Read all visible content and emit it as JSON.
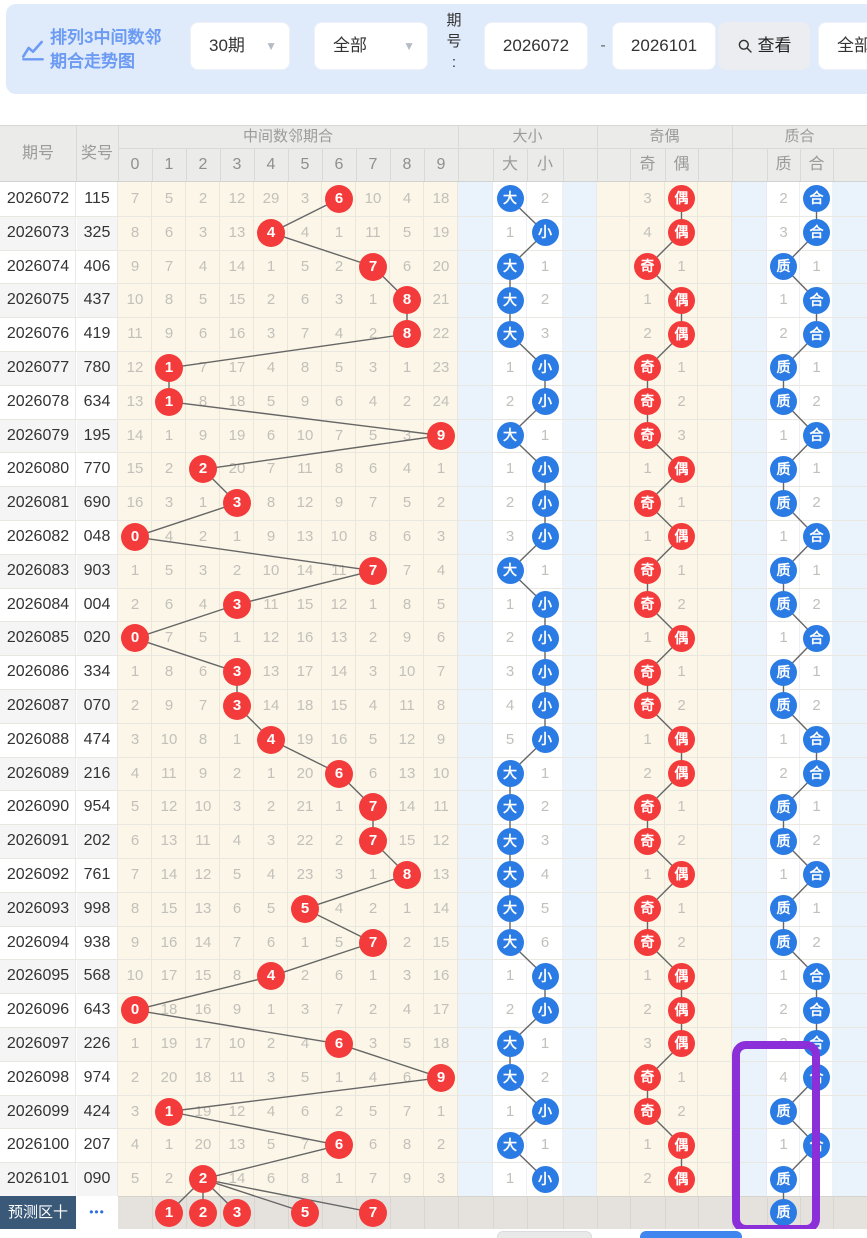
{
  "toolbar": {
    "title_line1": "排列3中间数邻",
    "title_line2": "期合走势图",
    "range_select": "30期",
    "scope_select": "全部",
    "period_label": "期号:",
    "period_from": "2026072",
    "period_dash": "-",
    "period_to": "2026101",
    "search_label": "查看",
    "right_select": "全部"
  },
  "header": {
    "period": "期号",
    "prize": "奖号",
    "group_mid": "中间数邻期合",
    "grid_cols": [
      "0",
      "1",
      "2",
      "3",
      "4",
      "5",
      "6",
      "7",
      "8",
      "9"
    ],
    "group_dx": "大小",
    "da": "大",
    "xiao": "小",
    "group_jo": "奇偶",
    "ji": "奇",
    "ou": "偶",
    "group_zh": "质合",
    "zhi": "质",
    "he": "合"
  },
  "rows": [
    {
      "qh": "2026072",
      "jh": "115",
      "grid": [
        7,
        5,
        2,
        12,
        29,
        3,
        6,
        10,
        4,
        18
      ],
      "hit": 6,
      "dx": [
        "大",
        2
      ],
      "jo": [
        "偶",
        3
      ],
      "zh": [
        "合",
        2
      ]
    },
    {
      "qh": "2026073",
      "jh": "325",
      "grid": [
        8,
        6,
        3,
        13,
        4,
        4,
        1,
        11,
        5,
        19
      ],
      "hit": 4,
      "dx": [
        "小",
        1
      ],
      "jo": [
        "偶",
        4
      ],
      "zh": [
        "合",
        3
      ]
    },
    {
      "qh": "2026074",
      "jh": "406",
      "grid": [
        9,
        7,
        4,
        14,
        1,
        5,
        2,
        7,
        6,
        20
      ],
      "hit": 7,
      "dx": [
        "大",
        1
      ],
      "jo": [
        "奇",
        1
      ],
      "zh": [
        "质",
        1
      ]
    },
    {
      "qh": "2026075",
      "jh": "437",
      "grid": [
        10,
        8,
        5,
        15,
        2,
        6,
        3,
        1,
        8,
        21
      ],
      "hit": 8,
      "dx": [
        "大",
        2
      ],
      "jo": [
        "偶",
        1
      ],
      "zh": [
        "合",
        1
      ]
    },
    {
      "qh": "2026076",
      "jh": "419",
      "grid": [
        11,
        9,
        6,
        16,
        3,
        7,
        4,
        2,
        8,
        22
      ],
      "hit": 8,
      "dx": [
        "大",
        3
      ],
      "jo": [
        "偶",
        2
      ],
      "zh": [
        "合",
        2
      ]
    },
    {
      "qh": "2026077",
      "jh": "780",
      "grid": [
        12,
        1,
        7,
        17,
        4,
        8,
        5,
        3,
        1,
        23
      ],
      "hit": 1,
      "dx": [
        "小",
        1
      ],
      "jo": [
        "奇",
        1
      ],
      "zh": [
        "质",
        1
      ]
    },
    {
      "qh": "2026078",
      "jh": "634",
      "grid": [
        13,
        1,
        8,
        18,
        5,
        9,
        6,
        4,
        2,
        24
      ],
      "hit": 1,
      "dx": [
        "小",
        2
      ],
      "jo": [
        "奇",
        2
      ],
      "zh": [
        "质",
        2
      ]
    },
    {
      "qh": "2026079",
      "jh": "195",
      "grid": [
        14,
        1,
        9,
        19,
        6,
        10,
        7,
        5,
        3,
        9
      ],
      "hit": 9,
      "dx": [
        "大",
        1
      ],
      "jo": [
        "奇",
        3
      ],
      "zh": [
        "合",
        1
      ]
    },
    {
      "qh": "2026080",
      "jh": "770",
      "grid": [
        15,
        2,
        2,
        20,
        7,
        11,
        8,
        6,
        4,
        1
      ],
      "hit": 2,
      "dx": [
        "小",
        1
      ],
      "jo": [
        "偶",
        1
      ],
      "zh": [
        "质",
        1
      ]
    },
    {
      "qh": "2026081",
      "jh": "690",
      "grid": [
        16,
        3,
        1,
        3,
        8,
        12,
        9,
        7,
        5,
        2
      ],
      "hit": 3,
      "dx": [
        "小",
        2
      ],
      "jo": [
        "奇",
        1
      ],
      "zh": [
        "质",
        2
      ]
    },
    {
      "qh": "2026082",
      "jh": "048",
      "grid": [
        0,
        4,
        2,
        1,
        9,
        13,
        10,
        8,
        6,
        3
      ],
      "hit": 0,
      "dx": [
        "小",
        3
      ],
      "jo": [
        "偶",
        1
      ],
      "zh": [
        "合",
        1
      ]
    },
    {
      "qh": "2026083",
      "jh": "903",
      "grid": [
        1,
        5,
        3,
        2,
        10,
        14,
        11,
        7,
        7,
        4
      ],
      "hit": 7,
      "dx": [
        "大",
        1
      ],
      "jo": [
        "奇",
        1
      ],
      "zh": [
        "质",
        1
      ]
    },
    {
      "qh": "2026084",
      "jh": "004",
      "grid": [
        2,
        6,
        4,
        3,
        11,
        15,
        12,
        1,
        8,
        5
      ],
      "hit": 3,
      "dx": [
        "小",
        1
      ],
      "jo": [
        "奇",
        2
      ],
      "zh": [
        "质",
        2
      ]
    },
    {
      "qh": "2026085",
      "jh": "020",
      "grid": [
        0,
        7,
        5,
        1,
        12,
        16,
        13,
        2,
        9,
        6
      ],
      "hit": 0,
      "dx": [
        "小",
        2
      ],
      "jo": [
        "偶",
        1
      ],
      "zh": [
        "合",
        1
      ]
    },
    {
      "qh": "2026086",
      "jh": "334",
      "grid": [
        1,
        8,
        6,
        3,
        13,
        17,
        14,
        3,
        10,
        7
      ],
      "hit": 3,
      "dx": [
        "小",
        3
      ],
      "jo": [
        "奇",
        1
      ],
      "zh": [
        "质",
        1
      ]
    },
    {
      "qh": "2026087",
      "jh": "070",
      "grid": [
        2,
        9,
        7,
        3,
        14,
        18,
        15,
        4,
        11,
        8
      ],
      "hit": 3,
      "dx": [
        "小",
        4
      ],
      "jo": [
        "奇",
        2
      ],
      "zh": [
        "质",
        2
      ]
    },
    {
      "qh": "2026088",
      "jh": "474",
      "grid": [
        3,
        10,
        8,
        1,
        4,
        19,
        16,
        5,
        12,
        9
      ],
      "hit": 4,
      "dx": [
        "小",
        5
      ],
      "jo": [
        "偶",
        1
      ],
      "zh": [
        "合",
        1
      ]
    },
    {
      "qh": "2026089",
      "jh": "216",
      "grid": [
        4,
        11,
        9,
        2,
        1,
        20,
        6,
        6,
        13,
        10
      ],
      "hit": 6,
      "dx": [
        "大",
        1
      ],
      "jo": [
        "偶",
        2
      ],
      "zh": [
        "合",
        2
      ]
    },
    {
      "qh": "2026090",
      "jh": "954",
      "grid": [
        5,
        12,
        10,
        3,
        2,
        21,
        1,
        7,
        14,
        11
      ],
      "hit": 7,
      "dx": [
        "大",
        2
      ],
      "jo": [
        "奇",
        1
      ],
      "zh": [
        "质",
        1
      ]
    },
    {
      "qh": "2026091",
      "jh": "202",
      "grid": [
        6,
        13,
        11,
        4,
        3,
        22,
        2,
        7,
        15,
        12
      ],
      "hit": 7,
      "dx": [
        "大",
        3
      ],
      "jo": [
        "奇",
        2
      ],
      "zh": [
        "质",
        2
      ]
    },
    {
      "qh": "2026092",
      "jh": "761",
      "grid": [
        7,
        14,
        12,
        5,
        4,
        23,
        3,
        1,
        8,
        13
      ],
      "hit": 8,
      "dx": [
        "大",
        4
      ],
      "jo": [
        "偶",
        1
      ],
      "zh": [
        "合",
        1
      ]
    },
    {
      "qh": "2026093",
      "jh": "998",
      "grid": [
        8,
        15,
        13,
        6,
        5,
        5,
        4,
        2,
        1,
        14
      ],
      "hit": 5,
      "dx": [
        "大",
        5
      ],
      "jo": [
        "奇",
        1
      ],
      "zh": [
        "质",
        1
      ]
    },
    {
      "qh": "2026094",
      "jh": "938",
      "grid": [
        9,
        16,
        14,
        7,
        6,
        1,
        5,
        7,
        2,
        15
      ],
      "hit": 7,
      "dx": [
        "大",
        6
      ],
      "jo": [
        "奇",
        2
      ],
      "zh": [
        "质",
        2
      ]
    },
    {
      "qh": "2026095",
      "jh": "568",
      "grid": [
        10,
        17,
        15,
        8,
        4,
        2,
        6,
        1,
        3,
        16
      ],
      "hit": 4,
      "dx": [
        "小",
        1
      ],
      "jo": [
        "偶",
        1
      ],
      "zh": [
        "合",
        1
      ]
    },
    {
      "qh": "2026096",
      "jh": "643",
      "grid": [
        0,
        18,
        16,
        9,
        1,
        3,
        7,
        2,
        4,
        17
      ],
      "hit": 0,
      "dx": [
        "小",
        2
      ],
      "jo": [
        "偶",
        2
      ],
      "zh": [
        "合",
        2
      ]
    },
    {
      "qh": "2026097",
      "jh": "226",
      "grid": [
        1,
        19,
        17,
        10,
        2,
        4,
        6,
        3,
        5,
        18
      ],
      "hit": 6,
      "dx": [
        "大",
        1
      ],
      "jo": [
        "偶",
        3
      ],
      "zh": [
        "合",
        3
      ]
    },
    {
      "qh": "2026098",
      "jh": "974",
      "grid": [
        2,
        20,
        18,
        11,
        3,
        5,
        1,
        4,
        6,
        9
      ],
      "hit": 9,
      "dx": [
        "大",
        2
      ],
      "jo": [
        "奇",
        1
      ],
      "zh": [
        "合",
        4
      ]
    },
    {
      "qh": "2026099",
      "jh": "424",
      "grid": [
        3,
        1,
        19,
        12,
        4,
        6,
        2,
        5,
        7,
        1
      ],
      "hit": 1,
      "dx": [
        "小",
        1
      ],
      "jo": [
        "奇",
        2
      ],
      "zh": [
        "质",
        1
      ]
    },
    {
      "qh": "2026100",
      "jh": "207",
      "grid": [
        4,
        1,
        20,
        13,
        5,
        7,
        6,
        6,
        8,
        2
      ],
      "hit": 6,
      "dx": [
        "大",
        1
      ],
      "jo": [
        "偶",
        1
      ],
      "zh": [
        "合",
        1
      ]
    },
    {
      "qh": "2026101",
      "jh": "090",
      "grid": [
        5,
        2,
        2,
        14,
        6,
        8,
        1,
        7,
        9,
        3
      ],
      "hit": 2,
      "dx": [
        "小",
        1
      ],
      "jo": [
        "偶",
        2
      ],
      "zh": [
        "质",
        1
      ]
    }
  ],
  "prediction": {
    "label_text": "预测区",
    "plus": "十",
    "dots": "•••",
    "grid_circles": [
      1,
      2,
      3,
      5,
      7
    ],
    "zh_circle": "质"
  },
  "colors": {
    "accent_blue": "#2b7be4",
    "accent_red": "#f43b3b",
    "highlight_purple": "#8b2fd9",
    "toolbar_bg": "#dfebfb",
    "title_blue": "#6d9bf4",
    "header_bg": "#ebebe9",
    "grid_bg": "#fbf6e7",
    "spacer_blue": "#eaf2fc",
    "prediction_label_bg": "#3a5877",
    "prediction_row_bg": "#e5e2dd",
    "bottom_button_gray": "#e9e9e9",
    "bottom_button_blue": "#3f87ee"
  }
}
